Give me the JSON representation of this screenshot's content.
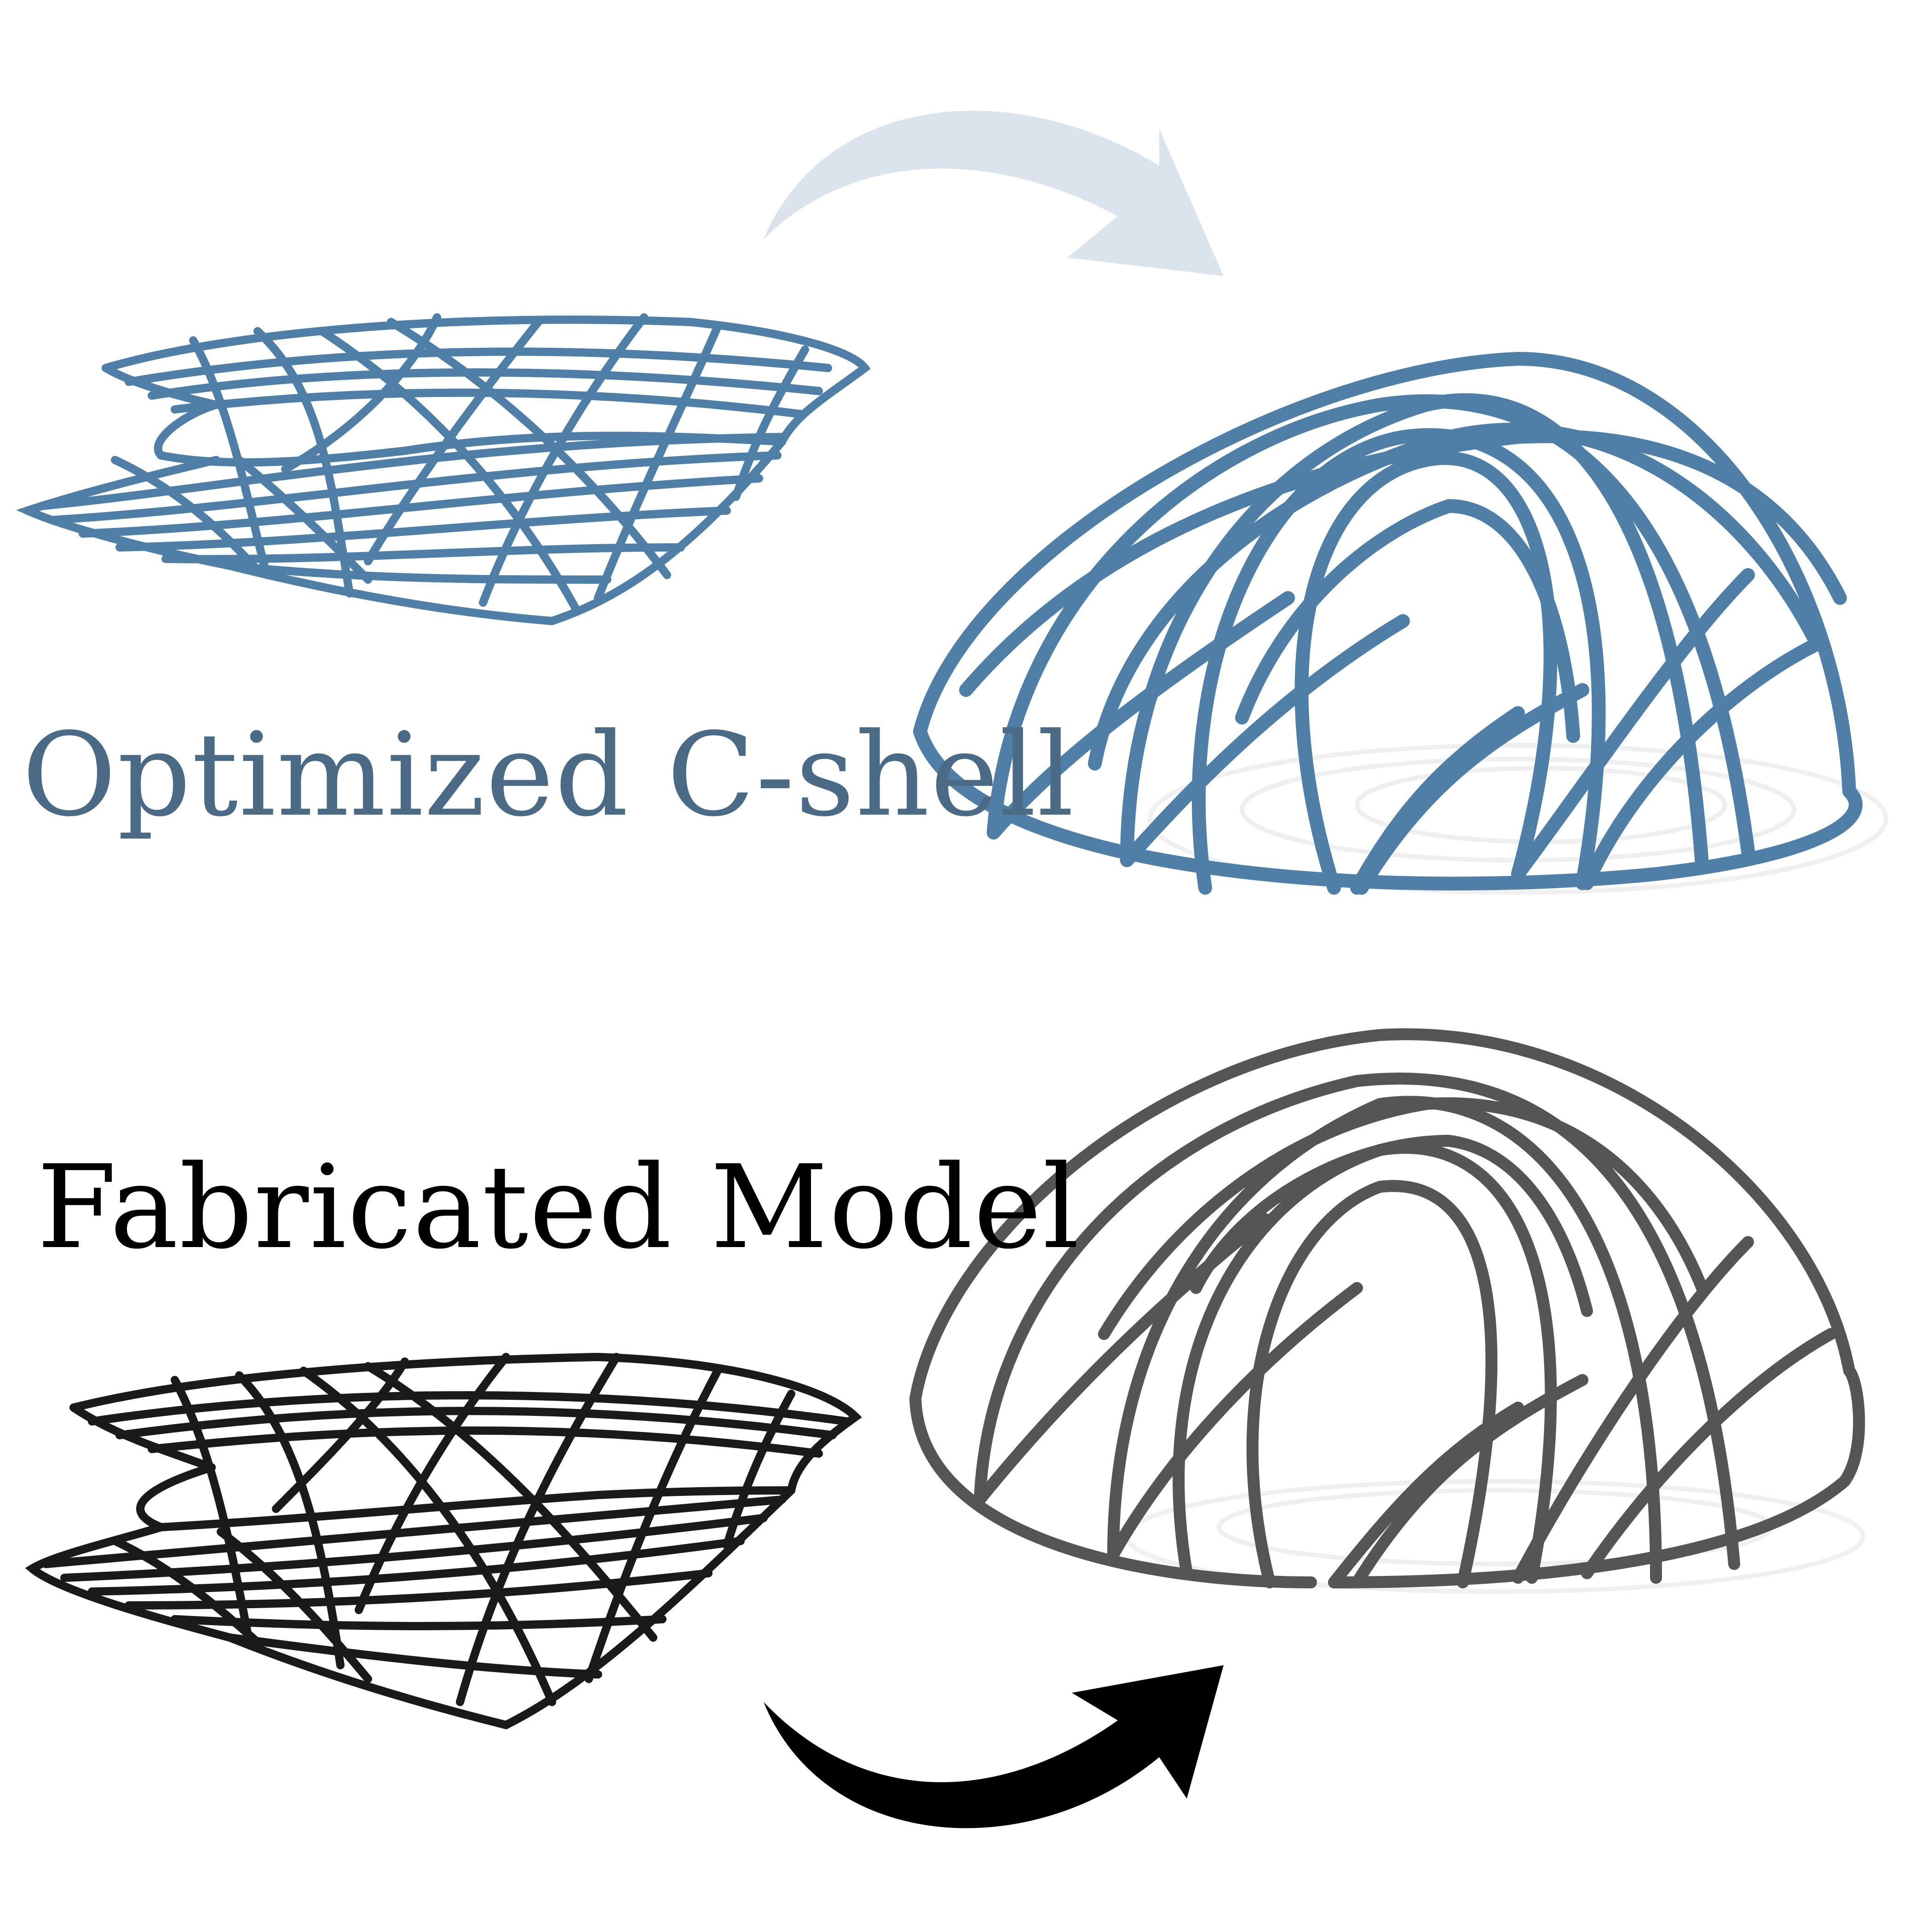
{
  "labels": {
    "optimized": "Optimized C-shell",
    "fabricated": "Fabricated Model"
  },
  "colors": {
    "optimized_text": "#4b6a85",
    "optimized_structure": "#4f7fa6",
    "optimized_structure_dark": "#2e4f6e",
    "optimized_arrow": "#dbe4ed",
    "fabricated_text": "#000000",
    "fabricated_structure": "#1a1a1a",
    "fabricated_structure_gray": "#555555",
    "fabricated_arrow": "#000000",
    "shadow": "#e6e6e6"
  },
  "icons": {
    "optimized_flat": "flat-grid-icon",
    "optimized_deployed": "deployed-dome-icon",
    "fabricated_flat": "flat-grid-icon",
    "fabricated_deployed": "deployed-dome-icon",
    "arrow_top": "curved-arrow-icon",
    "arrow_bottom": "curved-arrow-icon"
  }
}
